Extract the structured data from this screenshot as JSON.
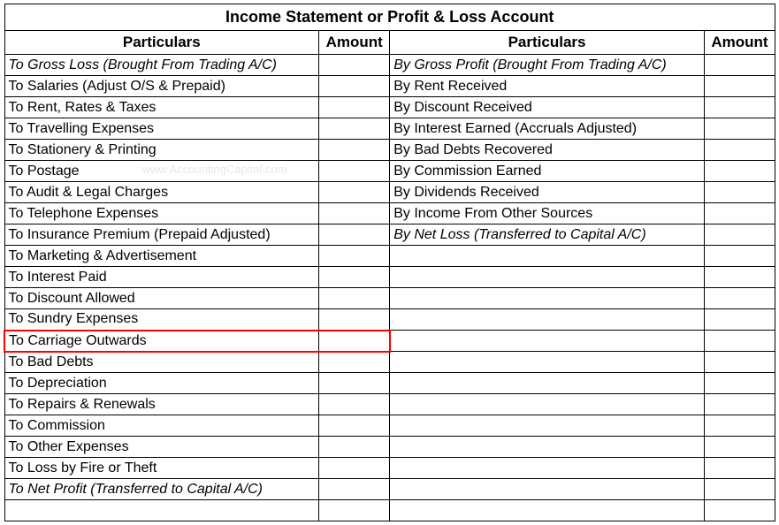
{
  "table": {
    "title": "Income Statement or Profit & Loss Account",
    "headers": {
      "left_particulars": "Particulars",
      "left_amount": "Amount",
      "right_particulars": "Particulars",
      "right_amount": "Amount"
    },
    "watermark": "www.AccountingCapital.com",
    "highlight_row_index": 13,
    "highlight_color": "#ff0000",
    "border_color": "#000000",
    "background_color": "#ffffff",
    "font_family": "Arial",
    "title_fontsize": 18,
    "header_fontsize": 17,
    "body_fontsize": 16,
    "column_widths": {
      "particulars": 355,
      "amount": 80
    },
    "rows": [
      {
        "left": "To Gross Loss (Brought From Trading A/C)",
        "left_italic": true,
        "left_amount": "",
        "right": "By Gross Profit (Brought From Trading A/C)",
        "right_italic": true,
        "right_amount": ""
      },
      {
        "left": "To Salaries (Adjust O/S & Prepaid)",
        "left_italic": false,
        "left_amount": "",
        "right": "By Rent Received",
        "right_italic": false,
        "right_amount": ""
      },
      {
        "left": "To Rent, Rates & Taxes",
        "left_italic": false,
        "left_amount": "",
        "right": "By Discount Received",
        "right_italic": false,
        "right_amount": ""
      },
      {
        "left": "To Travelling Expenses",
        "left_italic": false,
        "left_amount": "",
        "right": "By Interest Earned (Accruals Adjusted)",
        "right_italic": false,
        "right_amount": ""
      },
      {
        "left": "To Stationery & Printing",
        "left_italic": false,
        "left_amount": "",
        "right": "By Bad Debts Recovered",
        "right_italic": false,
        "right_amount": ""
      },
      {
        "left": "To Postage",
        "left_italic": false,
        "left_amount": "",
        "right": "By Commission Earned",
        "right_italic": false,
        "right_amount": ""
      },
      {
        "left": "To Audit & Legal Charges",
        "left_italic": false,
        "left_amount": "",
        "right": "By Dividends Received",
        "right_italic": false,
        "right_amount": ""
      },
      {
        "left": "To Telephone Expenses",
        "left_italic": false,
        "left_amount": "",
        "right": "By Income From Other Sources",
        "right_italic": false,
        "right_amount": ""
      },
      {
        "left": "To Insurance Premium (Prepaid Adjusted)",
        "left_italic": false,
        "left_amount": "",
        "right": "By Net Loss (Transferred to Capital A/C)",
        "right_italic": true,
        "right_amount": ""
      },
      {
        "left": "To Marketing & Advertisement",
        "left_italic": false,
        "left_amount": "",
        "right": "",
        "right_italic": false,
        "right_amount": ""
      },
      {
        "left": "To Interest Paid",
        "left_italic": false,
        "left_amount": "",
        "right": "",
        "right_italic": false,
        "right_amount": ""
      },
      {
        "left": "To Discount Allowed",
        "left_italic": false,
        "left_amount": "",
        "right": "",
        "right_italic": false,
        "right_amount": ""
      },
      {
        "left": "To Sundry Expenses",
        "left_italic": false,
        "left_amount": "",
        "right": "",
        "right_italic": false,
        "right_amount": ""
      },
      {
        "left": "To Carriage Outwards",
        "left_italic": false,
        "left_amount": "",
        "right": "",
        "right_italic": false,
        "right_amount": ""
      },
      {
        "left": "To Bad Debts",
        "left_italic": false,
        "left_amount": "",
        "right": "",
        "right_italic": false,
        "right_amount": ""
      },
      {
        "left": "To Depreciation",
        "left_italic": false,
        "left_amount": "",
        "right": "",
        "right_italic": false,
        "right_amount": ""
      },
      {
        "left": "To Repairs & Renewals",
        "left_italic": false,
        "left_amount": "",
        "right": "",
        "right_italic": false,
        "right_amount": ""
      },
      {
        "left": "To Commission",
        "left_italic": false,
        "left_amount": "",
        "right": "",
        "right_italic": false,
        "right_amount": ""
      },
      {
        "left": "To Other Expenses",
        "left_italic": false,
        "left_amount": "",
        "right": "",
        "right_italic": false,
        "right_amount": ""
      },
      {
        "left": "To Loss by Fire or Theft",
        "left_italic": false,
        "left_amount": "",
        "right": "",
        "right_italic": false,
        "right_amount": ""
      },
      {
        "left": "To Net Profit (Transferred to Capital A/C)",
        "left_italic": true,
        "left_amount": "",
        "right": "",
        "right_italic": false,
        "right_amount": ""
      },
      {
        "left": "",
        "left_italic": false,
        "left_amount": "",
        "right": "",
        "right_italic": false,
        "right_amount": ""
      }
    ]
  }
}
